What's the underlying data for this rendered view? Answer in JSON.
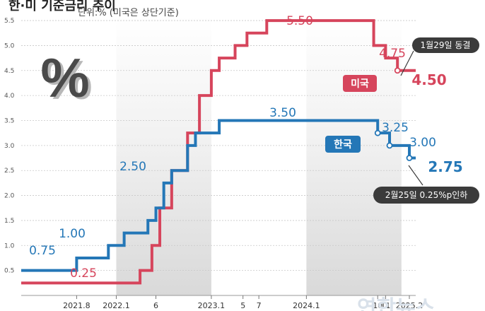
{
  "header": {
    "title": "한·미 기준금리 추이",
    "unit": "단위:% (미국은 상단기준)",
    "watermark": "연합뉴스"
  },
  "icon": {
    "name": "percent-icon",
    "glyph": "%"
  },
  "colors": {
    "us": "#d6455c",
    "kr": "#2477b7",
    "band": "#e6e6e6",
    "dark": "#3b3b3b"
  },
  "chart_data": {
    "type": "line",
    "step": true,
    "title": "",
    "xlabel": "",
    "ylabel": "",
    "ylim": [
      0,
      5.6
    ],
    "yticks": [
      "0.5",
      "1.0",
      "1.5",
      "2.0",
      "2.5",
      "3.0",
      "3.5",
      "4.0",
      "4.5",
      "5.0",
      "5.5"
    ],
    "xticks": [
      {
        "label": "2021.8",
        "t": 2021.583
      },
      {
        "label": "2022.1",
        "t": 2022.0
      },
      {
        "label": "6",
        "t": 2022.417
      },
      {
        "label": "2023.1",
        "t": 2023.0
      },
      {
        "label": "5",
        "t": 2023.333
      },
      {
        "label": "7",
        "t": 2023.5
      },
      {
        "label": "2024.1",
        "t": 2024.0
      },
      {
        "label": "10",
        "t": 2024.75
      },
      {
        "label": "11",
        "t": 2024.833
      },
      {
        "label": "2025.2",
        "t": 2025.083
      }
    ],
    "series": [
      {
        "name": "미국",
        "points": [
          [
            2021.0,
            0.25
          ],
          [
            2022.25,
            0.5
          ],
          [
            2022.375,
            1.0
          ],
          [
            2022.458,
            1.75
          ],
          [
            2022.583,
            2.5
          ],
          [
            2022.75,
            3.25
          ],
          [
            2022.875,
            4.0
          ],
          [
            2023.0,
            4.5
          ],
          [
            2023.083,
            4.75
          ],
          [
            2023.25,
            5.0
          ],
          [
            2023.375,
            5.25
          ],
          [
            2023.583,
            5.5
          ],
          [
            2024.708,
            5.0
          ],
          [
            2024.833,
            4.75
          ],
          [
            2024.958,
            4.5
          ],
          [
            2025.15,
            4.5
          ]
        ],
        "labels": [
          "0.25",
          "5.50",
          "4.75",
          "4.50"
        ],
        "markers": [
          [
            2024.958,
            4.5
          ]
        ]
      },
      {
        "name": "한국",
        "points": [
          [
            2021.0,
            0.5
          ],
          [
            2021.583,
            0.75
          ],
          [
            2021.917,
            1.0
          ],
          [
            2022.083,
            1.25
          ],
          [
            2022.333,
            1.5
          ],
          [
            2022.417,
            1.75
          ],
          [
            2022.5,
            2.25
          ],
          [
            2022.583,
            2.5
          ],
          [
            2022.75,
            3.0
          ],
          [
            2022.833,
            3.25
          ],
          [
            2023.083,
            3.5
          ],
          [
            2024.75,
            3.25
          ],
          [
            2024.875,
            3.0
          ],
          [
            2025.083,
            2.75
          ],
          [
            2025.15,
            2.75
          ]
        ],
        "labels": [
          "0.75",
          "1.00",
          "2.50",
          "3.50",
          "3.25",
          "3.00",
          "2.75"
        ],
        "markers": [
          [
            2024.75,
            3.25
          ],
          [
            2024.875,
            3.0
          ],
          [
            2025.083,
            2.75
          ]
        ]
      }
    ],
    "annotations": [
      "1월29일 동결",
      "2월25일 0.25%p인하"
    ]
  }
}
